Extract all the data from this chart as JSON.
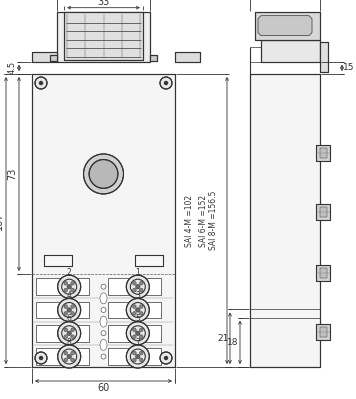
{
  "bg_color": "#ffffff",
  "line_color": "#333333",
  "fig_width": 3.56,
  "fig_height": 3.99,
  "dpi": 100,
  "dims": {
    "sai_4m": "SAI 4-M =102",
    "sai_6m": "SAI 6-M =152",
    "sai_8m": "SAI 8-M =156.5"
  }
}
